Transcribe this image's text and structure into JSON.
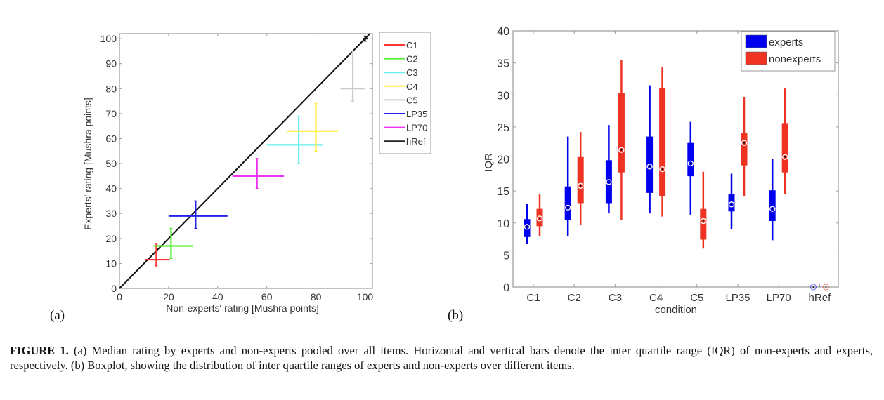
{
  "panel_labels": {
    "a": "(a)",
    "b": "(b)"
  },
  "caption": {
    "figure_label": "FIGURE 1.",
    "text": " (a) Median rating by experts and non-experts pooled over all items. Horizontal and vertical bars denote the inter quartile range (IQR) of non-experts and experts, respectively. (b) Boxplot, showing the distribution of inter quartile ranges of experts and non-experts over different items."
  },
  "chart_data": [
    {
      "type": "scatter",
      "title": "",
      "xlabel": "Non-experts' rating [Mushra points]",
      "ylabel": "Experts' rating [Mushra points]",
      "xlim": [
        0,
        103
      ],
      "ylim": [
        0,
        102
      ],
      "xticks": [
        0,
        20,
        40,
        60,
        80,
        100
      ],
      "yticks": [
        0,
        10,
        20,
        30,
        40,
        50,
        60,
        70,
        80,
        90,
        100
      ],
      "grid": false,
      "legend_position": "outside-right",
      "series": [
        {
          "name": "C1",
          "color": "#ff3333",
          "x": 15,
          "y": 11.5,
          "x_iqr": [
            10.5,
            20.5
          ],
          "y_iqr": [
            9,
            18
          ]
        },
        {
          "name": "C2",
          "color": "#55ee33",
          "x": 21,
          "y": 17,
          "x_iqr": [
            14,
            30
          ],
          "y_iqr": [
            12,
            24
          ]
        },
        {
          "name": "C3",
          "color": "#66eeee",
          "x": 73,
          "y": 57.5,
          "x_iqr": [
            60,
            83
          ],
          "y_iqr": [
            50,
            69
          ]
        },
        {
          "name": "C4",
          "color": "#ffee33",
          "x": 80,
          "y": 63,
          "x_iqr": [
            68,
            89
          ],
          "y_iqr": [
            55,
            74
          ]
        },
        {
          "name": "C5",
          "color": "#cccccc",
          "x": 95,
          "y": 80,
          "x_iqr": [
            90,
            100
          ],
          "y_iqr": [
            75,
            95
          ]
        },
        {
          "name": "LP35",
          "color": "#2222ee",
          "x": 31,
          "y": 29,
          "x_iqr": [
            20,
            44
          ],
          "y_iqr": [
            24,
            35
          ]
        },
        {
          "name": "LP70",
          "color": "#ee33ee",
          "x": 56,
          "y": 45,
          "x_iqr": [
            46,
            67
          ],
          "y_iqr": [
            40,
            52
          ]
        },
        {
          "name": "hRef",
          "color": "#222222",
          "x": 100,
          "y": 100,
          "x_iqr": [
            99,
            101
          ],
          "y_iqr": [
            99,
            101
          ]
        }
      ],
      "diagonal": {
        "from": [
          0,
          0
        ],
        "to": [
          102,
          102
        ],
        "color": "#111111"
      }
    },
    {
      "type": "box",
      "title": "",
      "xlabel": "condition",
      "ylabel": "IQR",
      "ylim": [
        0,
        40
      ],
      "yticks": [
        0,
        5,
        10,
        15,
        20,
        25,
        30,
        35,
        40
      ],
      "categories": [
        "C1",
        "C2",
        "C3",
        "C4",
        "C5",
        "LP35",
        "LP70",
        "hRef"
      ],
      "legend_position": "top-right",
      "series": [
        {
          "name": "experts",
          "color": "#0000ee",
          "boxes": [
            {
              "min": 6.8,
              "q1": 7.8,
              "median": 9.4,
              "q3": 10.6,
              "max": 13
            },
            {
              "min": 8,
              "q1": 10.5,
              "median": 12.4,
              "q3": 15.7,
              "max": 23.5
            },
            {
              "min": 11.5,
              "q1": 13.1,
              "median": 16.4,
              "q3": 19.8,
              "max": 25.3
            },
            {
              "min": 11.5,
              "q1": 14.7,
              "median": 18.8,
              "q3": 23.5,
              "max": 31.5
            },
            {
              "min": 11.3,
              "q1": 17.3,
              "median": 19.3,
              "q3": 22.5,
              "max": 25.8
            },
            {
              "min": 9,
              "q1": 11.8,
              "median": 12.9,
              "q3": 14.5,
              "max": 17.7
            },
            {
              "min": 7.3,
              "q1": 10.3,
              "median": 12.2,
              "q3": 15.1,
              "max": 20
            },
            {
              "min": 0,
              "q1": 0,
              "median": 0,
              "q3": 0,
              "max": 0
            }
          ]
        },
        {
          "name": "nonexperts",
          "color": "#ee3322",
          "boxes": [
            {
              "min": 8,
              "q1": 9.5,
              "median": 10.7,
              "q3": 12.2,
              "max": 14.5
            },
            {
              "min": 9.7,
              "q1": 13.1,
              "median": 15.8,
              "q3": 20.3,
              "max": 24.2
            },
            {
              "min": 10.5,
              "q1": 17.9,
              "median": 21.4,
              "q3": 30.3,
              "max": 35.5
            },
            {
              "min": 11,
              "q1": 14.2,
              "median": 18.4,
              "q3": 31.1,
              "max": 34.3
            },
            {
              "min": 6,
              "q1": 7.4,
              "median": 10.3,
              "q3": 12.2,
              "max": 18
            },
            {
              "min": 14.2,
              "q1": 19,
              "median": 22.5,
              "q3": 24.1,
              "max": 29.7
            },
            {
              "min": 14.5,
              "q1": 17.9,
              "median": 20.3,
              "q3": 25.6,
              "max": 31
            },
            {
              "min": 0,
              "q1": 0,
              "median": 0,
              "q3": 0,
              "max": 0
            }
          ]
        }
      ]
    }
  ]
}
